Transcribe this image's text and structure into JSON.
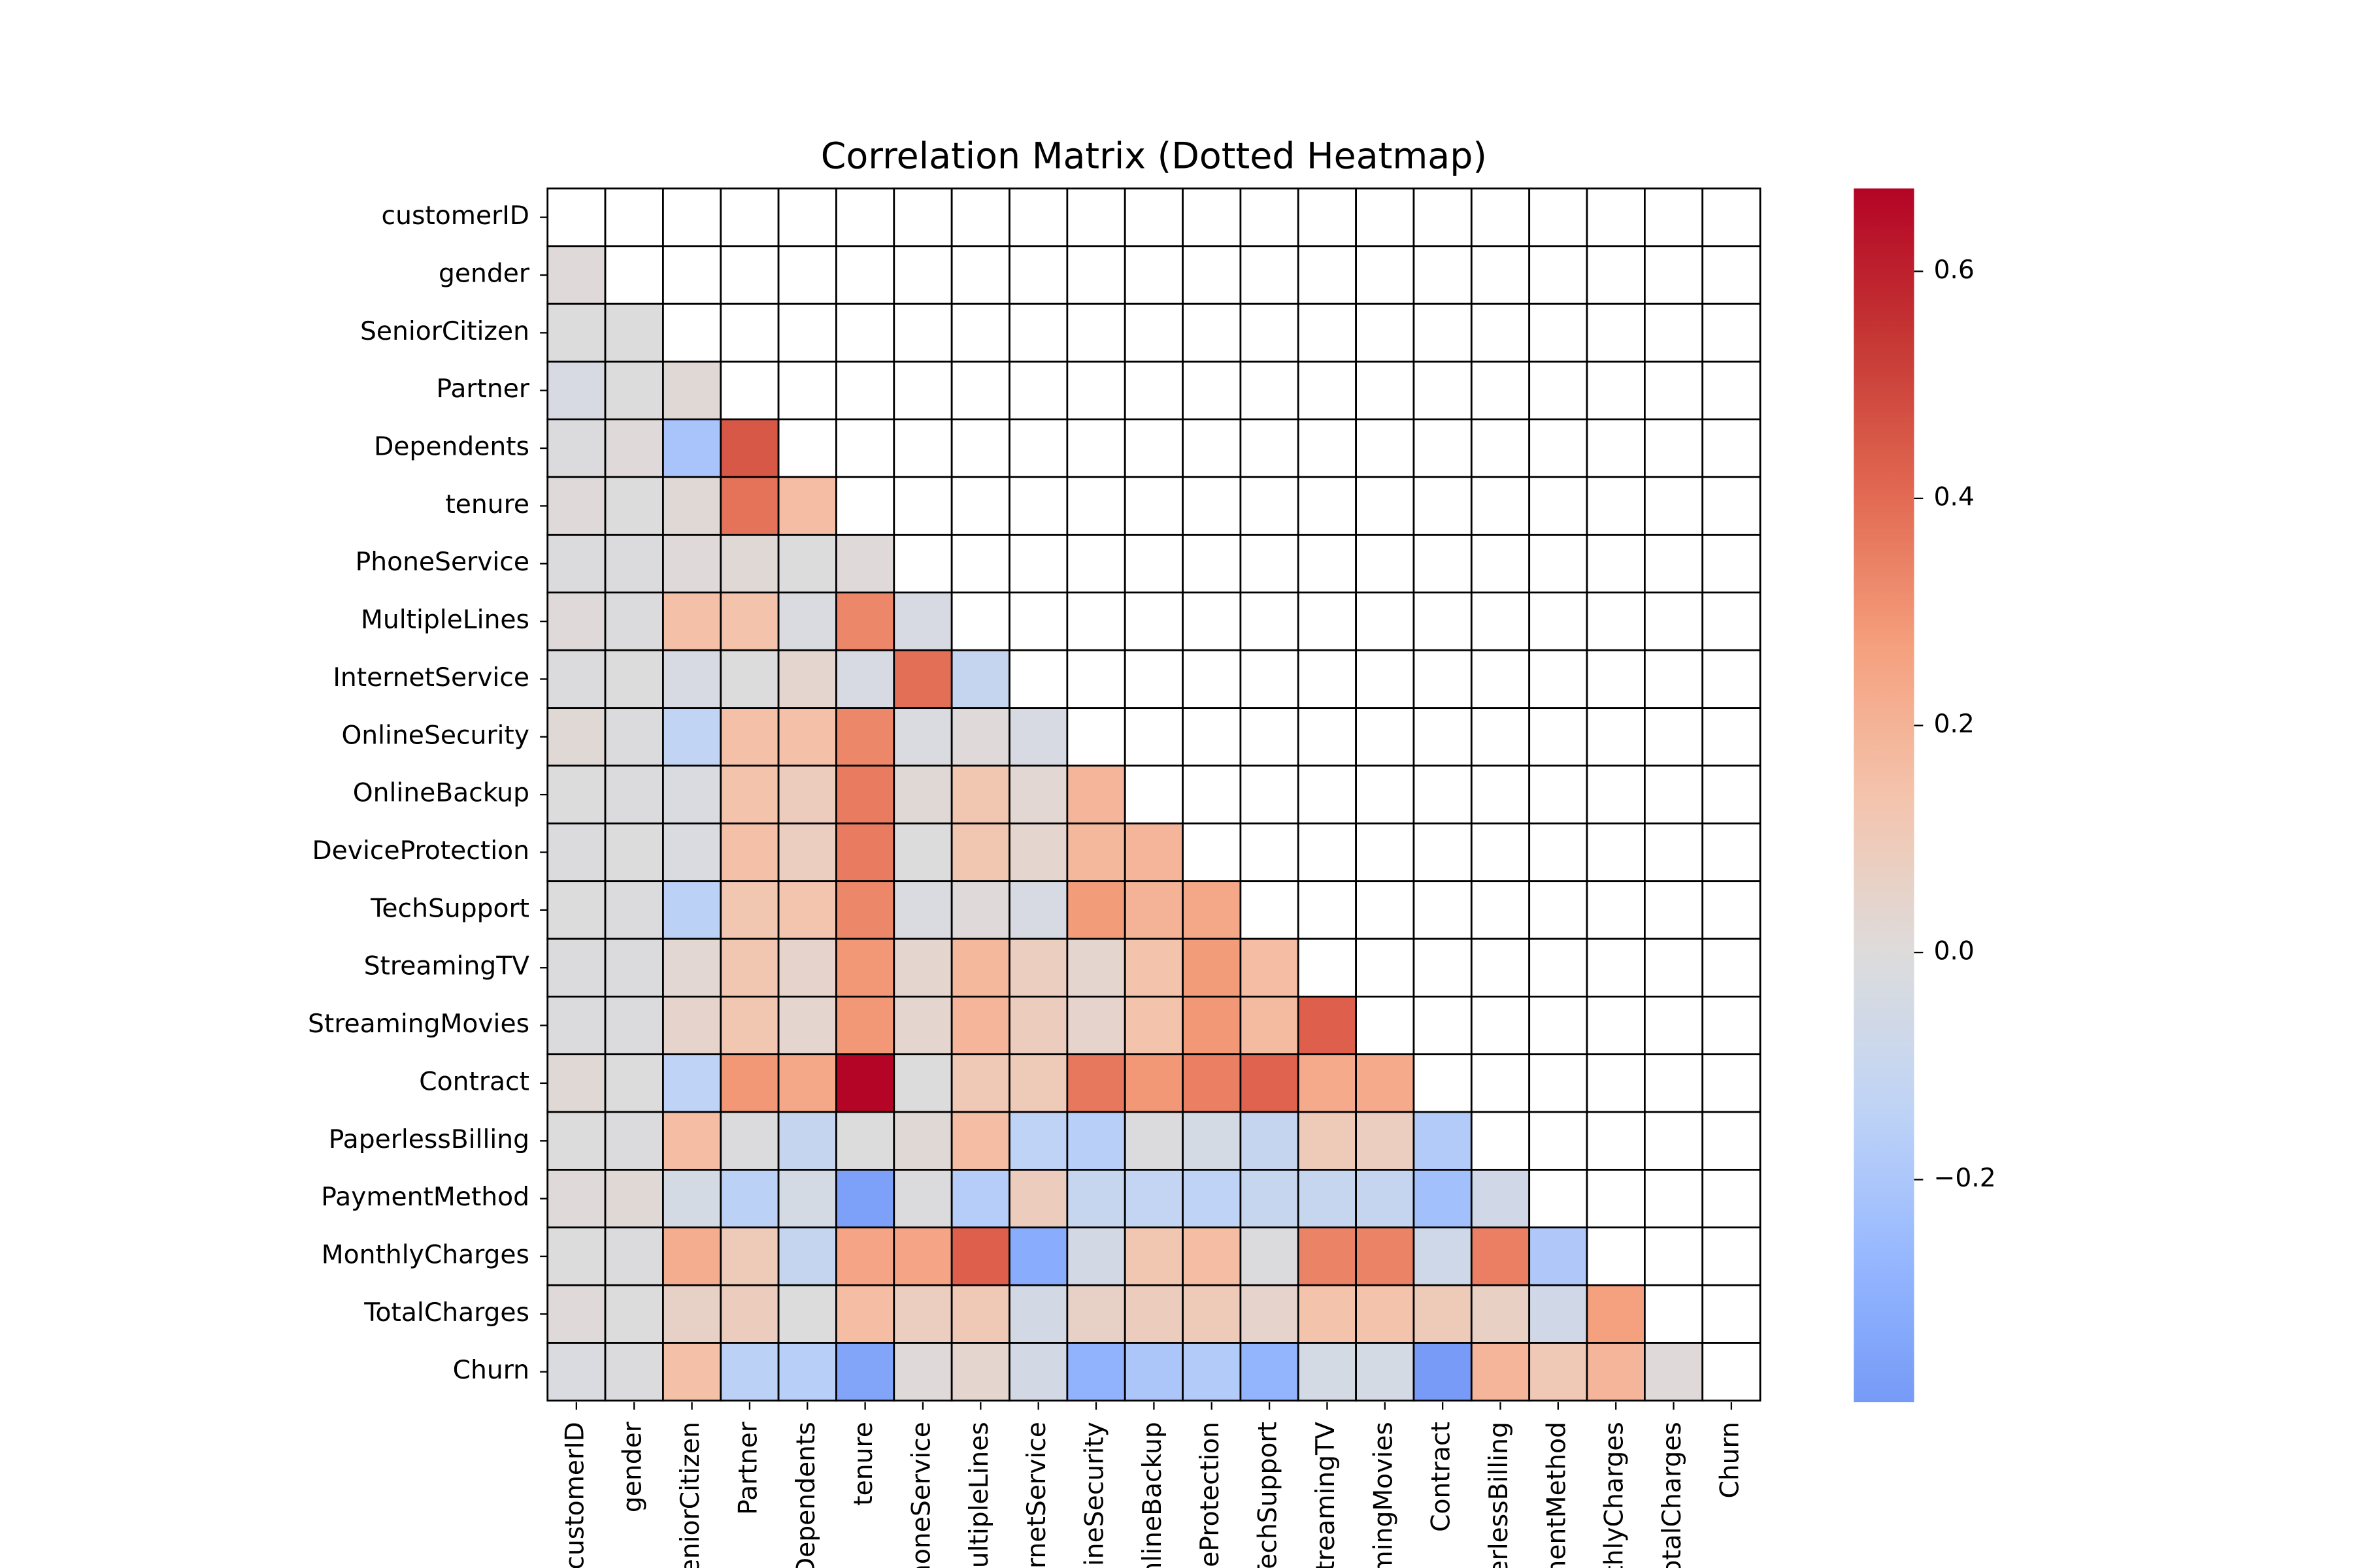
{
  "chart_data": {
    "type": "heatmap",
    "title": "Correlation Matrix (Dotted Heatmap)",
    "colormap": "coolwarm",
    "center": 0,
    "mask": "upper-with-diagonal",
    "categories": [
      "customerID",
      "gender",
      "SeniorCitizen",
      "Partner",
      "Dependents",
      "tenure",
      "PhoneService",
      "MultipleLines",
      "InternetService",
      "OnlineSecurity",
      "OnlineBackup",
      "DeviceProtection",
      "TechSupport",
      "StreamingTV",
      "StreamingMovies",
      "Contract",
      "PaperlessBilling",
      "PaymentMethod",
      "MonthlyCharges",
      "TotalCharges",
      "Churn"
    ],
    "values": [
      [],
      [
        0.01
      ],
      [
        0.0,
        0.0
      ],
      [
        -0.03,
        0.0,
        0.02
      ],
      [
        -0.01,
        0.01,
        -0.21,
        0.45
      ],
      [
        0.01,
        0.0,
        0.02,
        0.38,
        0.16
      ],
      [
        -0.01,
        -0.01,
        0.01,
        0.02,
        0.0,
        0.01
      ],
      [
        0.01,
        -0.01,
        0.15,
        0.14,
        -0.02,
        0.33,
        -0.03
      ],
      [
        -0.01,
        0.0,
        -0.03,
        0.0,
        0.04,
        -0.03,
        0.39,
        -0.11
      ],
      [
        0.02,
        -0.01,
        -0.13,
        0.15,
        0.15,
        0.33,
        -0.02,
        0.01,
        -0.03
      ],
      [
        0.0,
        -0.01,
        -0.02,
        0.14,
        0.09,
        0.36,
        0.02,
        0.12,
        0.03,
        0.19
      ],
      [
        -0.01,
        0.0,
        -0.02,
        0.15,
        0.08,
        0.36,
        0.0,
        0.12,
        0.04,
        0.18,
        0.19
      ],
      [
        0.0,
        -0.01,
        -0.15,
        0.12,
        0.13,
        0.33,
        -0.02,
        0.01,
        -0.03,
        0.28,
        0.2,
        0.24
      ],
      [
        -0.01,
        -0.01,
        0.03,
        0.12,
        0.05,
        0.29,
        0.04,
        0.18,
        0.08,
        0.04,
        0.14,
        0.28,
        0.16
      ],
      [
        -0.01,
        -0.01,
        0.05,
        0.12,
        0.04,
        0.29,
        0.04,
        0.19,
        0.09,
        0.05,
        0.14,
        0.29,
        0.17,
        0.43
      ],
      [
        0.02,
        0.0,
        -0.14,
        0.29,
        0.24,
        0.67,
        0.0,
        0.11,
        0.1,
        0.37,
        0.29,
        0.35,
        0.42,
        0.23,
        0.23
      ],
      [
        0.0,
        -0.01,
        0.16,
        -0.01,
        -0.11,
        0.0,
        0.02,
        0.16,
        -0.14,
        -0.16,
        -0.01,
        -0.04,
        -0.11,
        0.1,
        0.08,
        -0.18
      ],
      [
        0.01,
        0.02,
        -0.04,
        -0.15,
        -0.04,
        -0.37,
        -0.01,
        -0.17,
        0.09,
        -0.1,
        -0.12,
        -0.14,
        -0.1,
        -0.1,
        -0.11,
        -0.23,
        -0.06
      ],
      [
        0.0,
        -0.01,
        0.22,
        0.1,
        -0.11,
        0.25,
        0.25,
        0.43,
        -0.32,
        -0.05,
        0.12,
        0.16,
        -0.01,
        0.34,
        0.34,
        -0.07,
        0.35,
        -0.19
      ],
      [
        0.01,
        0.0,
        0.06,
        0.09,
        0.0,
        0.16,
        0.08,
        0.11,
        -0.05,
        0.06,
        0.09,
        0.1,
        0.05,
        0.14,
        0.14,
        0.1,
        0.07,
        -0.06,
        0.27
      ],
      [
        -0.02,
        -0.01,
        0.15,
        -0.15,
        -0.16,
        -0.35,
        0.01,
        0.04,
        -0.05,
        -0.29,
        -0.2,
        -0.18,
        -0.28,
        -0.04,
        -0.04,
        -0.39,
        0.19,
        0.11,
        0.19,
        0.01
      ]
    ],
    "clim": [
      -0.396,
      0.673
    ],
    "cticks": [
      {
        "value": -0.2,
        "label": "−0.2"
      },
      {
        "value": 0,
        "label": "0.0"
      },
      0.2,
      0.4,
      0.6
    ]
  }
}
